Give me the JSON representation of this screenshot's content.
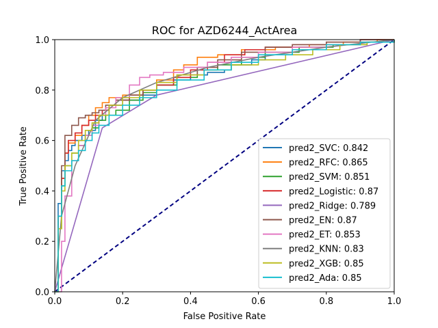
{
  "chart_data": {
    "type": "line",
    "title": "ROC for AZD6244_ActArea",
    "xlabel": "False Positive Rate",
    "ylabel": "True Positive Rate",
    "xlim": [
      0,
      1
    ],
    "ylim": [
      0,
      1
    ],
    "xticks": [
      "0.0",
      "0.2",
      "0.4",
      "0.6",
      "0.8",
      "1.0"
    ],
    "yticks": [
      "0.0",
      "0.2",
      "0.4",
      "0.6",
      "0.8",
      "1.0"
    ],
    "grid": false,
    "legend_position": "lower right",
    "diagonal": {
      "x": [
        0,
        1
      ],
      "y": [
        0,
        1
      ],
      "color": "#000080",
      "style": "dashed"
    },
    "series": [
      {
        "name": "pred2_SVC: 0.842",
        "color": "#1f77b4",
        "x": [
          0,
          0.01,
          0.01,
          0.02,
          0.02,
          0.03,
          0.04,
          0.05,
          0.06,
          0.08,
          0.1,
          0.12,
          0.14,
          0.16,
          0.2,
          0.25,
          0.3,
          0.35,
          0.4,
          0.45,
          0.5,
          0.52,
          0.58,
          0.62,
          0.7,
          0.8,
          0.9,
          1.0
        ],
        "y": [
          0,
          0.2,
          0.35,
          0.4,
          0.48,
          0.52,
          0.56,
          0.58,
          0.6,
          0.62,
          0.64,
          0.68,
          0.7,
          0.74,
          0.76,
          0.78,
          0.82,
          0.84,
          0.86,
          0.87,
          0.88,
          0.9,
          0.92,
          0.94,
          0.96,
          0.98,
          0.99,
          1.0
        ]
      },
      {
        "name": "pred2_RFC: 0.865",
        "color": "#ff7f0e",
        "x": [
          0,
          0.01,
          0.01,
          0.02,
          0.03,
          0.04,
          0.06,
          0.08,
          0.1,
          0.12,
          0.14,
          0.16,
          0.2,
          0.25,
          0.3,
          0.35,
          0.38,
          0.42,
          0.48,
          0.55,
          0.65,
          0.75,
          0.85,
          0.95,
          1.0
        ],
        "y": [
          0,
          0.1,
          0.3,
          0.45,
          0.55,
          0.59,
          0.62,
          0.66,
          0.7,
          0.73,
          0.75,
          0.77,
          0.78,
          0.8,
          0.84,
          0.88,
          0.9,
          0.93,
          0.94,
          0.96,
          0.97,
          0.98,
          0.99,
          1.0,
          1.0
        ]
      },
      {
        "name": "pred2_SVM: 0.851",
        "color": "#2ca02c",
        "x": [
          0,
          0.01,
          0.02,
          0.03,
          0.05,
          0.07,
          0.09,
          0.11,
          0.13,
          0.15,
          0.18,
          0.22,
          0.26,
          0.3,
          0.36,
          0.42,
          0.48,
          0.55,
          0.62,
          0.72,
          0.82,
          0.92,
          1.0
        ],
        "y": [
          0,
          0.25,
          0.42,
          0.5,
          0.55,
          0.58,
          0.62,
          0.65,
          0.68,
          0.7,
          0.72,
          0.76,
          0.79,
          0.82,
          0.85,
          0.88,
          0.9,
          0.93,
          0.95,
          0.97,
          0.98,
          0.99,
          1.0
        ]
      },
      {
        "name": "pred2_Logistic: 0.87",
        "color": "#d62728",
        "x": [
          0,
          0.01,
          0.02,
          0.03,
          0.04,
          0.06,
          0.08,
          0.1,
          0.12,
          0.14,
          0.16,
          0.18,
          0.22,
          0.26,
          0.3,
          0.35,
          0.4,
          0.45,
          0.5,
          0.56,
          0.62,
          0.7,
          0.8,
          0.9,
          1.0
        ],
        "y": [
          0,
          0.3,
          0.45,
          0.55,
          0.6,
          0.63,
          0.66,
          0.68,
          0.7,
          0.72,
          0.74,
          0.76,
          0.78,
          0.8,
          0.82,
          0.85,
          0.88,
          0.91,
          0.94,
          0.96,
          0.97,
          0.98,
          0.99,
          1.0,
          1.0
        ]
      },
      {
        "name": "pred2_Ridge: 0.789",
        "color": "#9467bd",
        "x": [
          0,
          0.14,
          0.3,
          1.0
        ],
        "y": [
          0,
          0.65,
          0.78,
          1.0
        ]
      },
      {
        "name": "pred2_EN: 0.87",
        "color": "#8c564b",
        "x": [
          0,
          0.01,
          0.02,
          0.03,
          0.05,
          0.07,
          0.09,
          0.11,
          0.13,
          0.15,
          0.18,
          0.22,
          0.26,
          0.3,
          0.36,
          0.42,
          0.48,
          0.55,
          0.62,
          0.7,
          0.8,
          0.9,
          1.0
        ],
        "y": [
          0,
          0.3,
          0.5,
          0.62,
          0.66,
          0.69,
          0.7,
          0.71,
          0.72,
          0.74,
          0.76,
          0.78,
          0.8,
          0.83,
          0.86,
          0.89,
          0.92,
          0.95,
          0.97,
          0.98,
          0.99,
          1.0,
          1.0
        ]
      },
      {
        "name": "pred2_ET: 0.853",
        "color": "#e377c2",
        "x": [
          0,
          0.02,
          0.03,
          0.05,
          0.07,
          0.09,
          0.11,
          0.13,
          0.15,
          0.18,
          0.22,
          0.25,
          0.28,
          0.32,
          0.38,
          0.45,
          0.52,
          0.6,
          0.7,
          0.8,
          0.9,
          1.0
        ],
        "y": [
          0,
          0.2,
          0.38,
          0.52,
          0.58,
          0.62,
          0.66,
          0.7,
          0.73,
          0.77,
          0.82,
          0.85,
          0.86,
          0.87,
          0.89,
          0.91,
          0.93,
          0.95,
          0.97,
          0.98,
          0.99,
          1.0
        ]
      },
      {
        "name": "pred2_KNN: 0.83",
        "color": "#7f7f7f",
        "x": [
          0,
          0.02,
          0.06,
          0.12,
          0.2,
          0.3,
          0.45,
          0.6,
          0.8,
          1.0
        ],
        "y": [
          0,
          0.3,
          0.5,
          0.68,
          0.77,
          0.83,
          0.89,
          0.93,
          0.97,
          1.0
        ]
      },
      {
        "name": "pred2_XGB: 0.85",
        "color": "#bcbd22",
        "x": [
          0,
          0.01,
          0.02,
          0.03,
          0.05,
          0.07,
          0.09,
          0.11,
          0.13,
          0.16,
          0.2,
          0.25,
          0.3,
          0.36,
          0.44,
          0.52,
          0.6,
          0.68,
          0.76,
          0.84,
          0.92,
          1.0
        ],
        "y": [
          0,
          0.25,
          0.4,
          0.5,
          0.55,
          0.6,
          0.64,
          0.67,
          0.7,
          0.74,
          0.77,
          0.8,
          0.83,
          0.86,
          0.88,
          0.9,
          0.92,
          0.94,
          0.96,
          0.98,
          0.99,
          1.0
        ]
      },
      {
        "name": "pred2_Ada: 0.85",
        "color": "#17becf",
        "x": [
          0,
          0.01,
          0.02,
          0.03,
          0.05,
          0.07,
          0.09,
          0.11,
          0.13,
          0.16,
          0.2,
          0.25,
          0.3,
          0.36,
          0.44,
          0.52,
          0.6,
          0.7,
          0.8,
          0.9,
          1.0
        ],
        "y": [
          0,
          0.3,
          0.42,
          0.48,
          0.52,
          0.56,
          0.6,
          0.63,
          0.66,
          0.7,
          0.74,
          0.77,
          0.8,
          0.84,
          0.88,
          0.91,
          0.94,
          0.96,
          0.98,
          0.99,
          1.0
        ]
      }
    ]
  }
}
